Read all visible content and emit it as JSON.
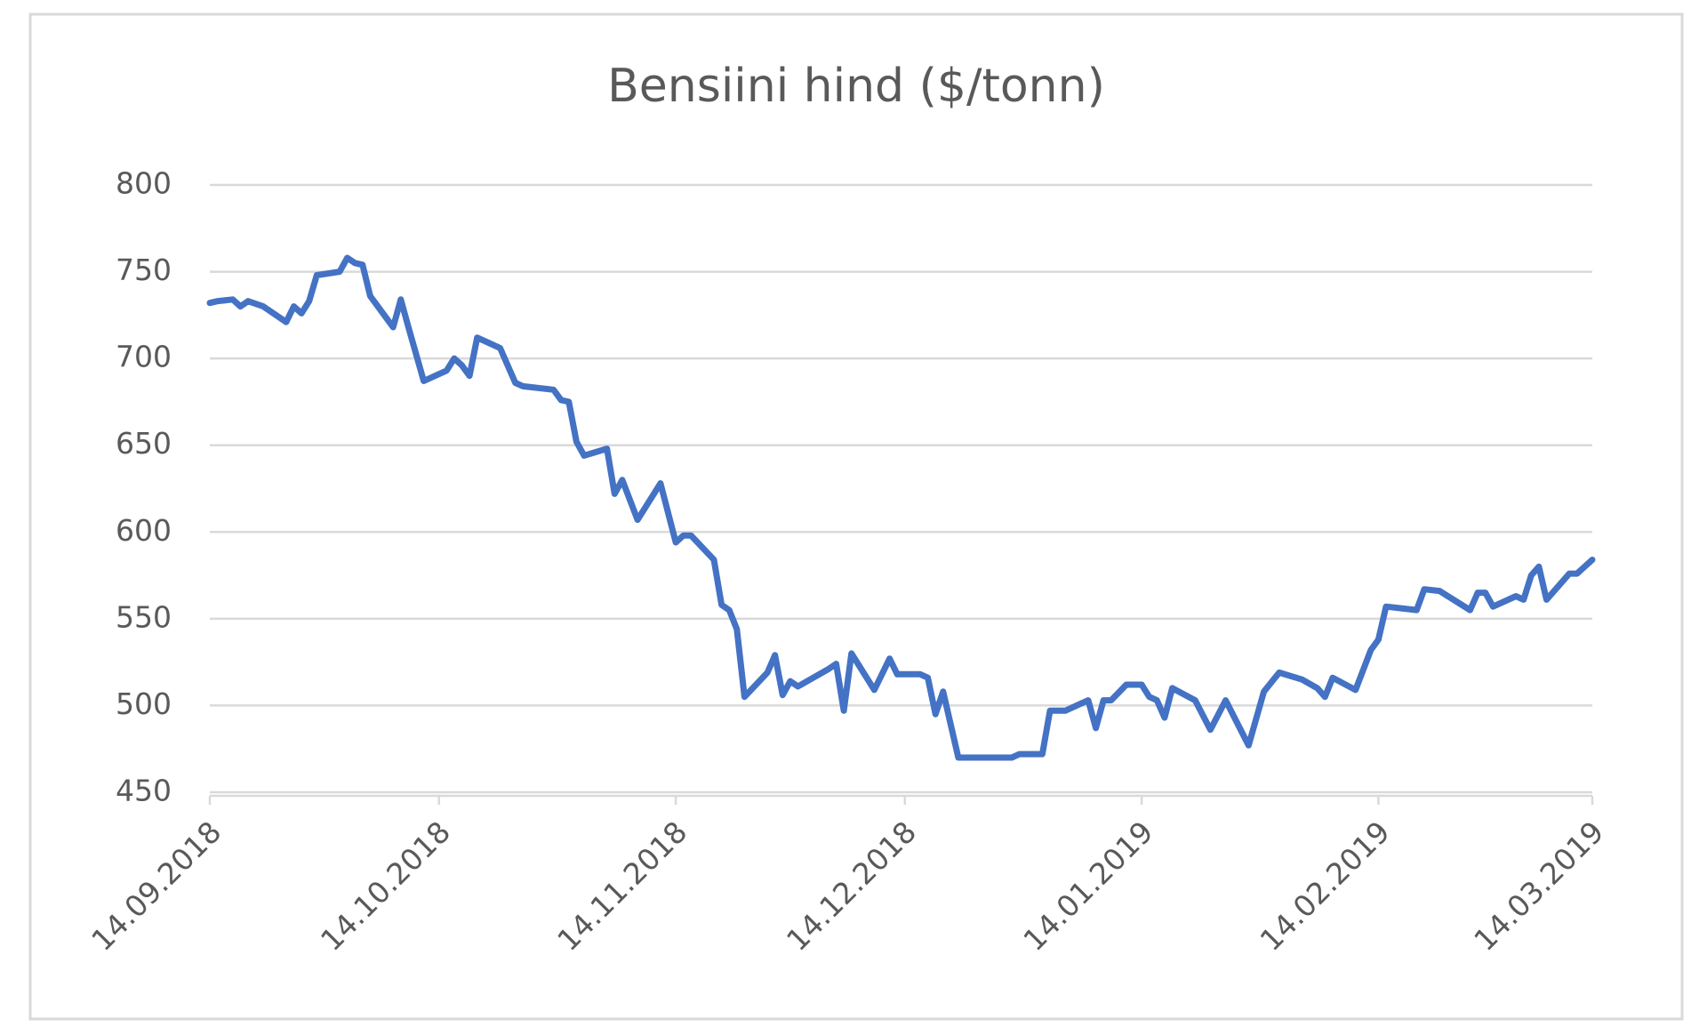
{
  "chart_data": {
    "type": "line",
    "title": "Bensiini hind ($/tonn)",
    "x": [
      "14.09.2018",
      "15.09.2018",
      "17.09.2018",
      "18.09.2018",
      "19.09.2018",
      "21.09.2018",
      "24.09.2018",
      "25.09.2018",
      "26.09.2018",
      "27.09.2018",
      "28.09.2018",
      "01.10.2018",
      "02.10.2018",
      "03.10.2018",
      "04.10.2018",
      "05.10.2018",
      "08.10.2018",
      "09.10.2018",
      "10.10.2018",
      "12.10.2018",
      "15.10.2018",
      "16.10.2018",
      "17.10.2018",
      "18.10.2018",
      "19.10.2018",
      "22.10.2018",
      "24.10.2018",
      "25.10.2018",
      "29.10.2018",
      "30.10.2018",
      "31.10.2018",
      "01.11.2018",
      "02.11.2018",
      "05.11.2018",
      "06.11.2018",
      "07.11.2018",
      "09.11.2018",
      "12.11.2018",
      "14.11.2018",
      "15.11.2018",
      "16.11.2018",
      "19.11.2018",
      "20.11.2018",
      "21.11.2018",
      "22.11.2018",
      "23.11.2018",
      "26.11.2018",
      "27.11.2018",
      "28.11.2018",
      "29.11.2018",
      "30.11.2018",
      "04.12.2018",
      "05.12.2018",
      "06.12.2018",
      "07.12.2018",
      "10.12.2018",
      "12.12.2018",
      "13.12.2018",
      "16.12.2018",
      "17.12.2018",
      "18.12.2018",
      "19.12.2018",
      "21.12.2018",
      "28.12.2018",
      "29.12.2018",
      "01.01.2019",
      "02.01.2019",
      "04.01.2019",
      "07.01.2019",
      "08.01.2019",
      "09.01.2019",
      "10.01.2019",
      "12.01.2019",
      "14.01.2019",
      "15.01.2019",
      "16.01.2019",
      "17.01.2019",
      "18.01.2019",
      "21.01.2019",
      "23.01.2019",
      "25.01.2019",
      "28.01.2019",
      "30.01.2019",
      "01.02.2019",
      "04.02.2019",
      "06.02.2019",
      "07.02.2019",
      "08.02.2019",
      "11.02.2019",
      "13.02.2019",
      "14.02.2019",
      "15.02.2019",
      "17.02.2019",
      "19.02.2019",
      "20.02.2019",
      "22.02.2019",
      "26.02.2019",
      "27.02.2019",
      "28.02.2019",
      "01.03.2019",
      "04.03.2019",
      "05.03.2019",
      "06.03.2019",
      "07.03.2019",
      "08.03.2019",
      "11.03.2019",
      "12.03.2019",
      "14.03.2019"
    ],
    "values": [
      732,
      733,
      734,
      730,
      733,
      730,
      721,
      730,
      726,
      733,
      748,
      750,
      758,
      755,
      754,
      736,
      718,
      734,
      718,
      687,
      693,
      700,
      696,
      690,
      712,
      706,
      686,
      684,
      682,
      676,
      675,
      652,
      644,
      648,
      622,
      630,
      607,
      628,
      594,
      598,
      598,
      584,
      558,
      555,
      544,
      505,
      519,
      529,
      506,
      514,
      511,
      521,
      524,
      497,
      530,
      509,
      527,
      518,
      518,
      516,
      495,
      508,
      470,
      470,
      472,
      472,
      497,
      497,
      503,
      487,
      503,
      503,
      512,
      512,
      505,
      503,
      493,
      510,
      503,
      486,
      503,
      477,
      508,
      519,
      515,
      510,
      505,
      516,
      509,
      532,
      538,
      557,
      556,
      555,
      567,
      566,
      555,
      565,
      565,
      557,
      563,
      561,
      575,
      580,
      561,
      576,
      576,
      584
    ],
    "color": "#4472c4",
    "xlim": [
      "14.09.2018",
      "14.03.2019"
    ],
    "xticks": [
      "14.09.2018",
      "14.10.2018",
      "14.11.2018",
      "14.12.2018",
      "14.01.2019",
      "14.02.2019",
      "14.03.2019"
    ],
    "ylim": [
      450,
      800
    ],
    "yticks": [
      450,
      500,
      550,
      600,
      650,
      700,
      750,
      800
    ],
    "grid": true
  }
}
